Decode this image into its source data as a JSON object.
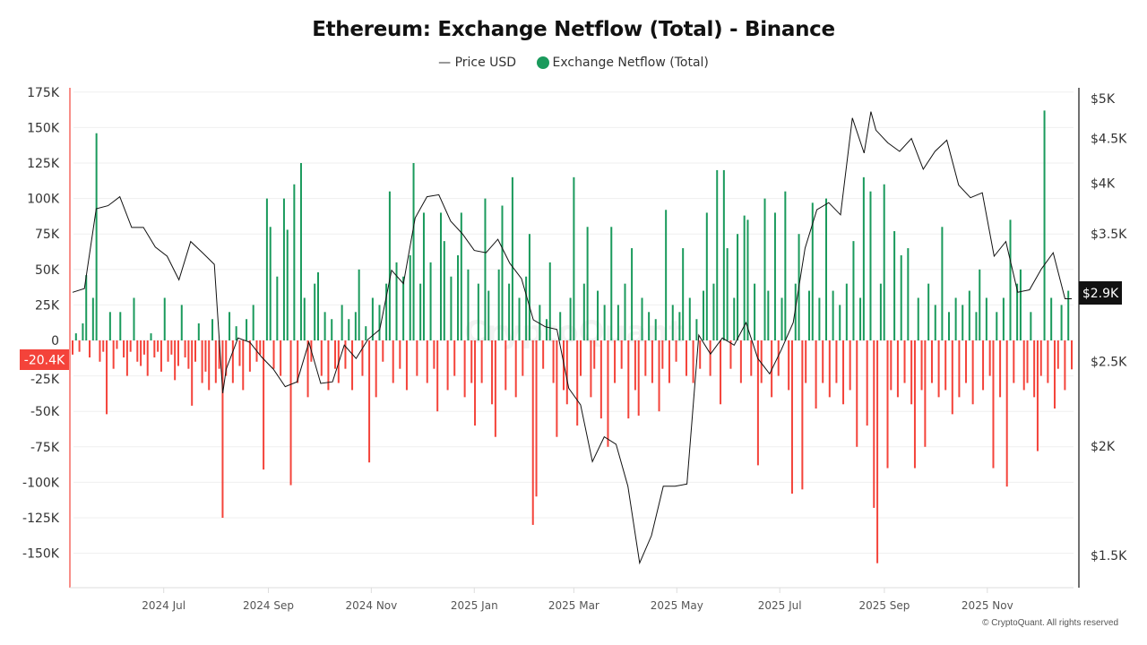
{
  "footer": "© CryptoQuant. All rights reserved",
  "watermark": "CryptoQuant",
  "colors": {
    "positive": "#1a9a5c",
    "negative": "#f4433a",
    "price": "#111111",
    "left_axis": "#f4433a",
    "right_axis": "#111111",
    "grid": "#eeeeee"
  },
  "chart_data": {
    "type": "bar",
    "title": "Ethereum: Exchange Netflow (Total) - Binance",
    "legend": [
      {
        "name": "Price USD",
        "symbol": "line",
        "color": "#111111"
      },
      {
        "name": "Exchange Netflow (Total)",
        "symbol": "dot",
        "color": "#1a9a5c"
      }
    ],
    "legend_position": "top",
    "grid": true,
    "x_axis": {
      "type": "date",
      "range": [
        "2024-05-08",
        "2025-12-21"
      ],
      "ticks": [
        {
          "label": "2024 Jul",
          "date": "2024-07-01"
        },
        {
          "label": "2024 Sep",
          "date": "2024-09-01"
        },
        {
          "label": "2024 Nov",
          "date": "2024-11-01"
        },
        {
          "label": "2025 Jan",
          "date": "2025-01-01"
        },
        {
          "label": "2025 Mar",
          "date": "2025-03-01"
        },
        {
          "label": "2025 May",
          "date": "2025-05-01"
        },
        {
          "label": "2025 Jul",
          "date": "2025-07-01"
        },
        {
          "label": "2025 Sep",
          "date": "2025-09-01"
        },
        {
          "label": "2025 Nov",
          "date": "2025-11-01"
        }
      ]
    },
    "y_left": {
      "unit": "K",
      "range": [
        -174,
        175
      ],
      "ticks": [
        "175K",
        "150K",
        "125K",
        "100K",
        "75K",
        "50K",
        "25K",
        "0",
        "-25K",
        "-50K",
        "-75K",
        "-100K",
        "-125K",
        "-150K"
      ],
      "tick_values": [
        175,
        150,
        125,
        100,
        75,
        50,
        25,
        0,
        -25,
        -50,
        -75,
        -100,
        -125,
        -150
      ],
      "current_value_label": "-20.4K"
    },
    "y_right": {
      "scale": "log",
      "range": [
        1300,
        5000
      ],
      "ticks": [
        "$5K",
        "$4.5K",
        "$4K",
        "$3.5K",
        "$2.5K",
        "$2K",
        "$1.5K"
      ],
      "tick_values": [
        5000,
        4500,
        4000,
        3500,
        2500,
        2000,
        1500
      ],
      "current_value_label": "$2.9K"
    },
    "series": [
      {
        "name": "Exchange Netflow (Total)",
        "type": "bar",
        "axis": "left",
        "unit": "K ETH",
        "date_range": [
          "2024-05-08",
          "2025-12-21"
        ],
        "values": [
          -10,
          5,
          -8,
          12,
          46,
          -12,
          30,
          146,
          -15,
          -8,
          -52,
          20,
          -20,
          -6,
          20,
          -12,
          -25,
          -8,
          30,
          -15,
          -18,
          -10,
          -25,
          5,
          -12,
          -8,
          -22,
          30,
          -15,
          -10,
          -28,
          -18,
          25,
          -12,
          -20,
          -46,
          -15,
          12,
          -30,
          -22,
          -35,
          15,
          -30,
          -20,
          -125,
          -25,
          20,
          -30,
          10,
          -18,
          -35,
          15,
          -22,
          25,
          -15,
          -10,
          -91,
          100,
          80,
          -20,
          45,
          -25,
          100,
          78,
          -102,
          110,
          -30,
          125,
          30,
          -40,
          -15,
          40,
          48,
          -25,
          20,
          -35,
          15,
          -20,
          -30,
          25,
          -20,
          15,
          -35,
          20,
          50,
          -25,
          10,
          -86,
          30,
          -40,
          25,
          -15,
          40,
          105,
          -30,
          55,
          -20,
          45,
          -35,
          60,
          125,
          -25,
          40,
          90,
          -30,
          55,
          -20,
          -50,
          90,
          70,
          -35,
          45,
          -25,
          60,
          90,
          -40,
          50,
          -30,
          -60,
          40,
          -30,
          100,
          35,
          -45,
          -68,
          50,
          95,
          -35,
          40,
          115,
          -40,
          30,
          -25,
          45,
          75,
          -130,
          -110,
          25,
          -20,
          15,
          55,
          -30,
          -68,
          20,
          -35,
          -45,
          30,
          115,
          -60,
          -25,
          40,
          80,
          -40,
          -20,
          35,
          -55,
          25,
          -75,
          80,
          -30,
          25,
          -20,
          40,
          -55,
          65,
          -35,
          -53,
          30,
          -25,
          20,
          -30,
          15,
          -50,
          -20,
          92,
          -30,
          25,
          -15,
          20,
          65,
          -25,
          30,
          -30,
          15,
          -20,
          35,
          90,
          -25,
          40,
          120,
          -45,
          120,
          65,
          -20,
          30,
          75,
          -30,
          88,
          85,
          -25,
          40,
          -88,
          -30,
          100,
          35,
          -40,
          90,
          -25,
          30,
          105,
          -35,
          -108,
          40,
          75,
          -105,
          -30,
          35,
          97,
          -48,
          30,
          -30,
          100,
          -40,
          35,
          -30,
          25,
          -45,
          40,
          -35,
          70,
          -75,
          30,
          115,
          -60,
          105,
          -118,
          -157,
          40,
          110,
          -90,
          -35,
          77,
          -40,
          60,
          -30,
          65,
          -45,
          -90,
          30,
          -35,
          -75,
          40,
          -30,
          25,
          -40,
          80,
          -35,
          20,
          -52,
          30,
          -40,
          25,
          -30,
          35,
          -45,
          20,
          50,
          -35,
          30,
          -25,
          -90,
          20,
          -40,
          30,
          -103,
          85,
          -30,
          40,
          50,
          -35,
          -30,
          20,
          -40,
          -78,
          -25,
          162,
          -30,
          30,
          -48,
          -20,
          25,
          -35,
          35,
          -20.4
        ]
      },
      {
        "name": "Price USD",
        "type": "line",
        "axis": "right",
        "points": [
          [
            "2024-05-08",
            3000
          ],
          [
            "2024-05-15",
            3030
          ],
          [
            "2024-05-22",
            3740
          ],
          [
            "2024-05-29",
            3770
          ],
          [
            "2024-06-05",
            3860
          ],
          [
            "2024-06-12",
            3560
          ],
          [
            "2024-06-19",
            3560
          ],
          [
            "2024-06-26",
            3380
          ],
          [
            "2024-07-03",
            3300
          ],
          [
            "2024-07-10",
            3100
          ],
          [
            "2024-07-17",
            3430
          ],
          [
            "2024-07-24",
            3330
          ],
          [
            "2024-07-31",
            3230
          ],
          [
            "2024-08-05",
            2300
          ],
          [
            "2024-08-07",
            2450
          ],
          [
            "2024-08-14",
            2660
          ],
          [
            "2024-08-21",
            2630
          ],
          [
            "2024-08-28",
            2530
          ],
          [
            "2024-09-04",
            2450
          ],
          [
            "2024-09-11",
            2340
          ],
          [
            "2024-09-18",
            2370
          ],
          [
            "2024-09-25",
            2630
          ],
          [
            "2024-10-02",
            2360
          ],
          [
            "2024-10-09",
            2370
          ],
          [
            "2024-10-16",
            2610
          ],
          [
            "2024-10-23",
            2520
          ],
          [
            "2024-10-30",
            2650
          ],
          [
            "2024-11-06",
            2720
          ],
          [
            "2024-11-13",
            3180
          ],
          [
            "2024-11-20",
            3070
          ],
          [
            "2024-11-27",
            3650
          ],
          [
            "2024-12-04",
            3860
          ],
          [
            "2024-12-11",
            3880
          ],
          [
            "2024-12-18",
            3620
          ],
          [
            "2024-12-25",
            3500
          ],
          [
            "2025-01-01",
            3350
          ],
          [
            "2025-01-08",
            3330
          ],
          [
            "2025-01-15",
            3450
          ],
          [
            "2025-01-22",
            3240
          ],
          [
            "2025-01-29",
            3110
          ],
          [
            "2025-02-05",
            2790
          ],
          [
            "2025-02-12",
            2740
          ],
          [
            "2025-02-19",
            2720
          ],
          [
            "2025-02-26",
            2330
          ],
          [
            "2025-03-05",
            2230
          ],
          [
            "2025-03-12",
            1920
          ],
          [
            "2025-03-19",
            2050
          ],
          [
            "2025-03-26",
            2010
          ],
          [
            "2025-04-02",
            1800
          ],
          [
            "2025-04-09",
            1470
          ],
          [
            "2025-04-16",
            1580
          ],
          [
            "2025-04-23",
            1800
          ],
          [
            "2025-04-30",
            1800
          ],
          [
            "2025-05-07",
            1810
          ],
          [
            "2025-05-14",
            2680
          ],
          [
            "2025-05-21",
            2550
          ],
          [
            "2025-05-28",
            2660
          ],
          [
            "2025-06-04",
            2610
          ],
          [
            "2025-06-11",
            2770
          ],
          [
            "2025-06-18",
            2520
          ],
          [
            "2025-06-25",
            2420
          ],
          [
            "2025-07-02",
            2580
          ],
          [
            "2025-07-09",
            2770
          ],
          [
            "2025-07-16",
            3370
          ],
          [
            "2025-07-23",
            3730
          ],
          [
            "2025-07-30",
            3800
          ],
          [
            "2025-08-06",
            3680
          ],
          [
            "2025-08-13",
            4750
          ],
          [
            "2025-08-20",
            4330
          ],
          [
            "2025-08-24",
            4830
          ],
          [
            "2025-08-27",
            4600
          ],
          [
            "2025-09-03",
            4450
          ],
          [
            "2025-09-10",
            4350
          ],
          [
            "2025-09-17",
            4500
          ],
          [
            "2025-09-24",
            4150
          ],
          [
            "2025-10-01",
            4350
          ],
          [
            "2025-10-08",
            4480
          ],
          [
            "2025-10-15",
            3980
          ],
          [
            "2025-10-22",
            3850
          ],
          [
            "2025-10-29",
            3900
          ],
          [
            "2025-11-05",
            3300
          ],
          [
            "2025-11-12",
            3430
          ],
          [
            "2025-11-19",
            3000
          ],
          [
            "2025-11-26",
            3020
          ],
          [
            "2025-12-03",
            3190
          ],
          [
            "2025-12-10",
            3330
          ],
          [
            "2025-12-17",
            2950
          ],
          [
            "2025-12-21",
            2950
          ]
        ]
      }
    ]
  }
}
